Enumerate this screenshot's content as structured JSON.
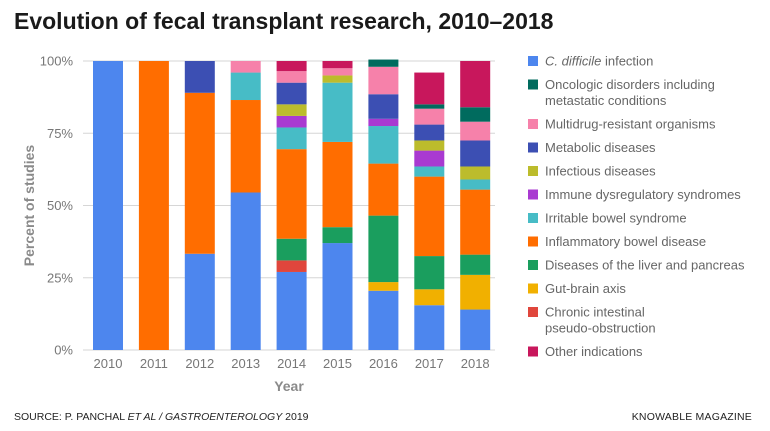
{
  "header": {
    "title": "Evolution of fecal transplant research, 2010–2018"
  },
  "footer": {
    "source_prefix": "SOURCE: P. PANCHAL ",
    "source_italic": "ET AL / GASTROENTEROLOGY",
    "source_suffix": " 2019",
    "brand": "KNOWABLE MAGAZINE"
  },
  "chart_data": {
    "type": "bar",
    "stacked": true,
    "xlabel": "Year",
    "ylabel": "Percent of studies",
    "ylim": [
      0,
      100
    ],
    "yticks": [
      0,
      25,
      50,
      75,
      100
    ],
    "ytick_labels": [
      "0%",
      "25%",
      "50%",
      "75%",
      "100%"
    ],
    "grid": true,
    "legend_position": "right",
    "categories": [
      "2010",
      "2011",
      "2012",
      "2013",
      "2014",
      "2015",
      "2016",
      "2017",
      "2018"
    ],
    "series": [
      {
        "name": "C. difficile infection",
        "name_italic": "C. difficile",
        "name_rest": " infection",
        "color": "#4d86ee",
        "values": [
          100,
          0,
          33.3,
          54.5,
          27,
          37,
          20.5,
          15.5,
          14
        ]
      },
      {
        "name": "Chronic intestinal pseudo-obstruction",
        "color": "#e0463c",
        "values": [
          0,
          0,
          0,
          0,
          4,
          0,
          0,
          0,
          0
        ]
      },
      {
        "name": "Gut-brain axis",
        "color": "#f1b000",
        "values": [
          0,
          0,
          0,
          0,
          0,
          0,
          3,
          5.5,
          12
        ]
      },
      {
        "name": "Diseases of the liver and pancreas",
        "color": "#1a9e5e",
        "values": [
          0,
          0,
          0,
          0,
          7.5,
          5.5,
          23,
          11.5,
          7
        ]
      },
      {
        "name": "Inflammatory bowel disease",
        "color": "#ff6d00",
        "values": [
          0,
          100,
          55.7,
          32,
          31,
          29.5,
          18,
          27.5,
          22.5
        ]
      },
      {
        "name": "Irritable bowel syndrome",
        "color": "#47bcc6",
        "values": [
          0,
          0,
          0,
          9.5,
          7.5,
          20.5,
          13,
          3.5,
          3.5
        ]
      },
      {
        "name": "Immune dysregulatory syndromes",
        "color": "#a93ad1",
        "values": [
          0,
          0,
          0,
          0,
          4,
          0,
          2.5,
          5.5,
          0
        ]
      },
      {
        "name": "Infectious diseases",
        "color": "#bcbc2c",
        "values": [
          0,
          0,
          0,
          0,
          4,
          2.5,
          0,
          3.5,
          4.5
        ]
      },
      {
        "name": "Metabolic diseases",
        "color": "#3c4fb3",
        "values": [
          0,
          0,
          11,
          0,
          7.5,
          0,
          8.5,
          5.5,
          9
        ]
      },
      {
        "name": "Multidrug-resistant organisms",
        "color": "#f681aa",
        "values": [
          0,
          0,
          0,
          4,
          4,
          2.5,
          9.5,
          5.5,
          6.5
        ]
      },
      {
        "name": "Oncologic disorders including metastatic conditions",
        "color": "#006b5e",
        "values": [
          0,
          0,
          0,
          0,
          0,
          0,
          2.5,
          1.5,
          5
        ]
      },
      {
        "name": "Other indications",
        "color": "#c8175c",
        "values": [
          0,
          0,
          0,
          0,
          3.5,
          2.5,
          0,
          11,
          16
        ]
      }
    ],
    "legend_order": [
      0,
      10,
      9,
      8,
      7,
      6,
      5,
      4,
      3,
      2,
      1,
      11
    ],
    "legend_lines": [
      [
        "C. difficile infection"
      ],
      [
        "Oncologic disorders including",
        "metastatic conditions"
      ],
      [
        "Multidrug-resistant organisms"
      ],
      [
        "Metabolic diseases"
      ],
      [
        "Infectious diseases"
      ],
      [
        "Immune dysregulatory syndromes"
      ],
      [
        "Irritable bowel syndrome"
      ],
      [
        "Inflammatory bowel disease"
      ],
      [
        "Diseases of the liver and pancreas"
      ],
      [
        "Gut-brain axis"
      ],
      [
        "Chronic intestinal",
        "pseudo-obstruction"
      ],
      [
        "Other indications"
      ]
    ]
  }
}
